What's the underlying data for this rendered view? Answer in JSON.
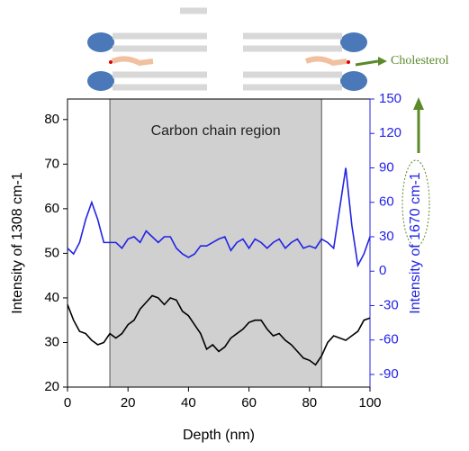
{
  "chart_data": {
    "type": "line",
    "region_label": "Carbon chain region",
    "region": [
      14,
      84
    ],
    "annotation": "Cholesterol",
    "xlabel": "Depth (nm)",
    "ylabel": "Intensity of 1308 cm-1",
    "y2label": "Intensity of 1670 cm-1",
    "xlim": [
      0,
      100
    ],
    "xticks": [
      0,
      20,
      40,
      60,
      80,
      100
    ],
    "ylim": [
      20,
      84.6
    ],
    "yticks": [
      20,
      30,
      40,
      50,
      60,
      70,
      80
    ],
    "y2lim": [
      -101,
      150
    ],
    "y2ticks": [
      -90,
      -60,
      -30,
      0,
      30,
      60,
      90,
      120,
      150
    ],
    "x": [
      0,
      2,
      4,
      6,
      8,
      10,
      12,
      14,
      16,
      18,
      20,
      22,
      24,
      26,
      28,
      30,
      32,
      34,
      36,
      38,
      40,
      42,
      44,
      46,
      48,
      50,
      52,
      54,
      56,
      58,
      60,
      62,
      64,
      66,
      68,
      70,
      72,
      74,
      76,
      78,
      80,
      82,
      84,
      86,
      88,
      90,
      92,
      94,
      96,
      98,
      100
    ],
    "series": [
      {
        "color": "#000000",
        "values": [
          38.5,
          35,
          32.5,
          32,
          30.5,
          29.5,
          30,
          32,
          31,
          32,
          34,
          35,
          37.5,
          39,
          40.5,
          40,
          38.5,
          40,
          39.5,
          37,
          36,
          34,
          32,
          28.5,
          29.5,
          28,
          29,
          31,
          32,
          33,
          34.5,
          35,
          35,
          33,
          31.5,
          32,
          30.5,
          29.5,
          28,
          26.5,
          26,
          25,
          27,
          30,
          31.5,
          31,
          30.5,
          31.5,
          32.5,
          35,
          35.5
        ]
      },
      {
        "color": "#2323e6",
        "axis": "y2",
        "values": [
          20,
          15,
          25,
          45,
          60,
          45,
          25,
          25,
          25,
          20,
          28,
          30,
          25,
          35,
          30,
          25,
          30,
          30,
          20,
          15,
          12,
          15,
          22,
          22,
          25,
          28,
          30,
          18,
          25,
          28,
          20,
          28,
          25,
          20,
          25,
          28,
          20,
          25,
          28,
          20,
          22,
          20,
          28,
          25,
          20,
          55,
          90,
          40,
          5,
          15,
          30
        ]
      }
    ]
  }
}
